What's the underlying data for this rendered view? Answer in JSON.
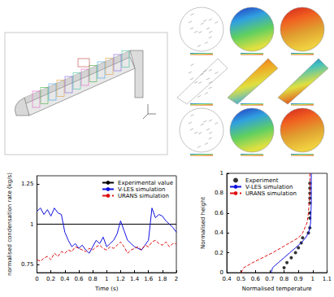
{
  "chart_data": [
    {
      "type": "line",
      "x_label": "Time (s)",
      "y_label": "normalised condensation rate (kg/s)",
      "xlim": [
        0,
        2
      ],
      "xticks": [
        0,
        0.2,
        0.4,
        0.6,
        0.8,
        1,
        1.2,
        1.4,
        1.6,
        1.8,
        2
      ],
      "ylim": [
        0.7,
        1.3
      ],
      "yticks": [
        0.75,
        1,
        1.25
      ],
      "grid": false,
      "legend": "upper right",
      "series": [
        {
          "name": "Experimental value",
          "color": "#000000",
          "line_style": "solid",
          "marker": "none",
          "x": [
            0,
            2
          ],
          "values": [
            1,
            1
          ]
        },
        {
          "name": "V-LES simulation",
          "color": "#1010e0",
          "line_style": "solid",
          "marker": "none",
          "x": [
            0,
            0.05,
            0.1,
            0.15,
            0.2,
            0.25,
            0.3,
            0.35,
            0.4,
            0.45,
            0.5,
            0.55,
            0.6,
            0.65,
            0.7,
            0.75,
            0.8,
            0.85,
            0.9,
            0.95,
            1,
            1.05,
            1.1,
            1.15,
            1.2,
            1.25,
            1.3,
            1.35,
            1.4,
            1.45,
            1.5,
            1.55,
            1.6,
            1.65,
            1.7,
            1.75,
            1.8,
            1.85,
            1.9,
            1.95,
            2
          ],
          "values": [
            1.08,
            1.1,
            1.06,
            1.09,
            1.05,
            1.1,
            1.07,
            1.06,
            0.95,
            0.9,
            0.86,
            0.88,
            0.85,
            0.87,
            0.84,
            0.82,
            0.86,
            0.9,
            0.88,
            0.92,
            0.86,
            0.88,
            0.9,
            0.94,
            1.02,
            0.96,
            0.9,
            0.88,
            0.86,
            0.85,
            0.84,
            0.87,
            0.9,
            1.1,
            1.04,
            1.06,
            1.05,
            1.02,
            1.0,
            0.98,
            0.95
          ]
        },
        {
          "name": "URANS simulation",
          "color": "#e01010",
          "line_style": "dashed",
          "marker": "none",
          "x": [
            0,
            0.05,
            0.1,
            0.15,
            0.2,
            0.25,
            0.3,
            0.35,
            0.4,
            0.45,
            0.5,
            0.55,
            0.6,
            0.65,
            0.7,
            0.75,
            0.8,
            0.85,
            0.9,
            0.95,
            1,
            1.05,
            1.1,
            1.15,
            1.2,
            1.25,
            1.3,
            1.35,
            1.4,
            1.45,
            1.5,
            1.55,
            1.6,
            1.65,
            1.7,
            1.75,
            1.8,
            1.85,
            1.9,
            1.95,
            2
          ],
          "values": [
            0.78,
            0.77,
            0.79,
            0.8,
            0.78,
            0.82,
            0.8,
            0.83,
            0.82,
            0.84,
            0.83,
            0.86,
            0.85,
            0.84,
            0.83,
            0.85,
            0.84,
            0.86,
            0.87,
            0.85,
            0.84,
            0.86,
            0.85,
            0.87,
            0.89,
            0.86,
            0.82,
            0.84,
            0.85,
            0.86,
            0.84,
            0.87,
            0.86,
            0.89,
            0.9,
            0.88,
            0.87,
            0.89,
            0.86,
            0.88,
            0.88
          ]
        }
      ]
    },
    {
      "type": "line",
      "x_label": "Normalised temperature",
      "y_label": "Normalised height",
      "xlim": [
        0.4,
        1.1
      ],
      "xticks": [
        0.4,
        0.5,
        0.6,
        0.7,
        0.8,
        0.9,
        1,
        1.1
      ],
      "ylim": [
        0,
        1
      ],
      "yticks": [
        0,
        0.2,
        0.4,
        0.6,
        0.8,
        1
      ],
      "grid": false,
      "legend": "upper left",
      "series": [
        {
          "name": "Experiment",
          "type": "scatter",
          "color": "#000000",
          "marker": "circle",
          "x": [
            0.8,
            0.82,
            0.85,
            0.88,
            0.9,
            0.92,
            0.93,
            0.97,
            0.98,
            0.98,
            0.98,
            0.98,
            0.98,
            0.98,
            0.98,
            0.98
          ],
          "values": [
            0.05,
            0.1,
            0.15,
            0.2,
            0.25,
            0.3,
            0.35,
            0.4,
            0.45,
            0.55,
            0.6,
            0.7,
            0.75,
            0.8,
            0.85,
            0.9
          ]
        },
        {
          "name": "V-LES simulation",
          "type": "line",
          "color": "#1010e0",
          "line_style": "solid",
          "marker": "none",
          "x": [
            0.71,
            0.72,
            0.76,
            0.8,
            0.84,
            0.88,
            0.92,
            0.95,
            0.97,
            0.98,
            0.985,
            0.99,
            0.99
          ],
          "values": [
            0,
            0.05,
            0.1,
            0.15,
            0.2,
            0.25,
            0.3,
            0.35,
            0.4,
            0.45,
            0.5,
            0.7,
            1
          ]
        },
        {
          "name": "URANS simulation",
          "type": "line",
          "color": "#e01010",
          "line_style": "dashed",
          "marker": "none",
          "x": [
            0.5,
            0.52,
            0.58,
            0.65,
            0.72,
            0.78,
            0.84,
            0.9,
            0.93,
            0.96,
            0.97,
            0.98,
            0.98
          ],
          "values": [
            0,
            0.05,
            0.1,
            0.15,
            0.2,
            0.25,
            0.3,
            0.35,
            0.4,
            0.5,
            0.6,
            0.8,
            1
          ]
        }
      ]
    }
  ]
}
